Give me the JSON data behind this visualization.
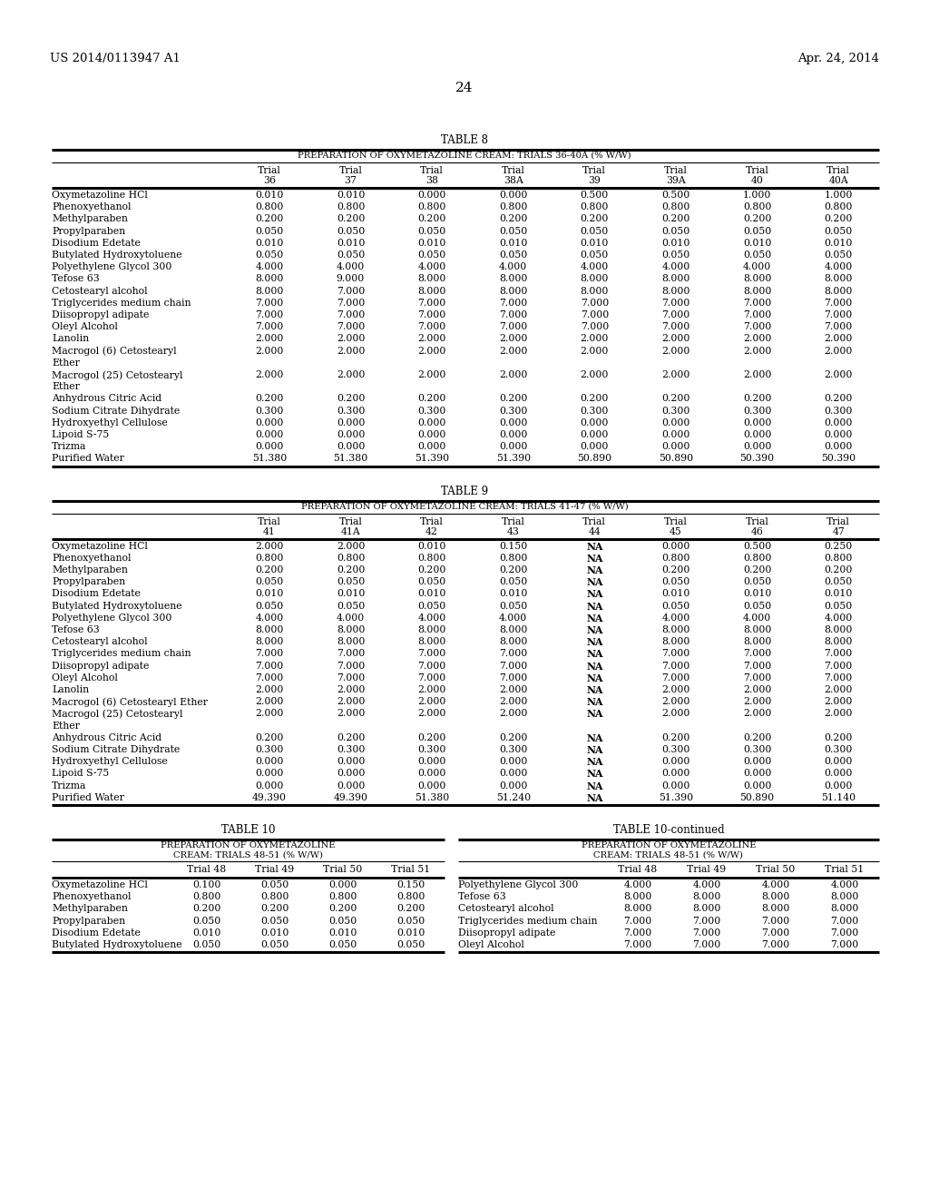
{
  "header_left": "US 2014/0113947 A1",
  "header_right": "Apr. 24, 2014",
  "page_num": "24",
  "table8": {
    "title": "TABLE 8",
    "subtitle": "PREPARATION OF OXYMETAZOLINE CREAM: TRIALS 36-40A (% W/W)",
    "col_headers": [
      [
        "Trial",
        "36"
      ],
      [
        "Trial",
        "37"
      ],
      [
        "Trial",
        "38"
      ],
      [
        "Trial",
        "38A"
      ],
      [
        "Trial",
        "39"
      ],
      [
        "Trial",
        "39A"
      ],
      [
        "Trial",
        "40"
      ],
      [
        "Trial",
        "40A"
      ]
    ],
    "rows": [
      [
        "Oxymetazoline HCl",
        "0.010",
        "0.010",
        "0.000",
        "0.000",
        "0.500",
        "0.500",
        "1.000",
        "1.000"
      ],
      [
        "Phenoxyethanol",
        "0.800",
        "0.800",
        "0.800",
        "0.800",
        "0.800",
        "0.800",
        "0.800",
        "0.800"
      ],
      [
        "Methylparaben",
        "0.200",
        "0.200",
        "0.200",
        "0.200",
        "0.200",
        "0.200",
        "0.200",
        "0.200"
      ],
      [
        "Propylparaben",
        "0.050",
        "0.050",
        "0.050",
        "0.050",
        "0.050",
        "0.050",
        "0.050",
        "0.050"
      ],
      [
        "Disodium Edetate",
        "0.010",
        "0.010",
        "0.010",
        "0.010",
        "0.010",
        "0.010",
        "0.010",
        "0.010"
      ],
      [
        "Butylated Hydroxytoluene",
        "0.050",
        "0.050",
        "0.050",
        "0.050",
        "0.050",
        "0.050",
        "0.050",
        "0.050"
      ],
      [
        "Polyethylene Glycol 300",
        "4.000",
        "4.000",
        "4.000",
        "4.000",
        "4.000",
        "4.000",
        "4.000",
        "4.000"
      ],
      [
        "Tefose 63",
        "8.000",
        "9.000",
        "8.000",
        "8.000",
        "8.000",
        "8.000",
        "8.000",
        "8.000"
      ],
      [
        "Cetostearyl alcohol",
        "8.000",
        "7.000",
        "8.000",
        "8.000",
        "8.000",
        "8.000",
        "8.000",
        "8.000"
      ],
      [
        "Triglycerides medium chain",
        "7.000",
        "7.000",
        "7.000",
        "7.000",
        "7.000",
        "7.000",
        "7.000",
        "7.000"
      ],
      [
        "Diisopropyl adipate",
        "7.000",
        "7.000",
        "7.000",
        "7.000",
        "7.000",
        "7.000",
        "7.000",
        "7.000"
      ],
      [
        "Oleyl Alcohol",
        "7.000",
        "7.000",
        "7.000",
        "7.000",
        "7.000",
        "7.000",
        "7.000",
        "7.000"
      ],
      [
        "Lanolin",
        "2.000",
        "2.000",
        "2.000",
        "2.000",
        "2.000",
        "2.000",
        "2.000",
        "2.000"
      ],
      [
        "Macrogol (6) Cetostearyl\nEther",
        "2.000",
        "2.000",
        "2.000",
        "2.000",
        "2.000",
        "2.000",
        "2.000",
        "2.000"
      ],
      [
        "Macrogol (25) Cetostearyl\nEther",
        "2.000",
        "2.000",
        "2.000",
        "2.000",
        "2.000",
        "2.000",
        "2.000",
        "2.000"
      ],
      [
        "Anhydrous Citric Acid",
        "0.200",
        "0.200",
        "0.200",
        "0.200",
        "0.200",
        "0.200",
        "0.200",
        "0.200"
      ],
      [
        "Sodium Citrate Dihydrate",
        "0.300",
        "0.300",
        "0.300",
        "0.300",
        "0.300",
        "0.300",
        "0.300",
        "0.300"
      ],
      [
        "Hydroxyethyl Cellulose",
        "0.000",
        "0.000",
        "0.000",
        "0.000",
        "0.000",
        "0.000",
        "0.000",
        "0.000"
      ],
      [
        "Lipoid S-75",
        "0.000",
        "0.000",
        "0.000",
        "0.000",
        "0.000",
        "0.000",
        "0.000",
        "0.000"
      ],
      [
        "Trizma",
        "0.000",
        "0.000",
        "0.000",
        "0.000",
        "0.000",
        "0.000",
        "0.000",
        "0.000"
      ],
      [
        "Purified Water",
        "51.380",
        "51.380",
        "51.390",
        "51.390",
        "50.890",
        "50.890",
        "50.390",
        "50.390"
      ]
    ]
  },
  "table9": {
    "title": "TABLE 9",
    "subtitle": "PREPARATION OF OXYMETAZOLINE CREAM: TRIALS 41-47 (% W/W)",
    "col_headers": [
      [
        "Trial",
        "41"
      ],
      [
        "Trial",
        "41A"
      ],
      [
        "Trial",
        "42"
      ],
      [
        "Trial",
        "43"
      ],
      [
        "Trial",
        "44"
      ],
      [
        "Trial",
        "45"
      ],
      [
        "Trial",
        "46"
      ],
      [
        "Trial",
        "47"
      ]
    ],
    "rows": [
      [
        "Oxymetazoline HCl",
        "2.000",
        "2.000",
        "0.010",
        "0.150",
        "NA",
        "0.000",
        "0.500",
        "0.250"
      ],
      [
        "Phenoxyethanol",
        "0.800",
        "0.800",
        "0.800",
        "0.800",
        "NA",
        "0.800",
        "0.800",
        "0.800"
      ],
      [
        "Methylparaben",
        "0.200",
        "0.200",
        "0.200",
        "0.200",
        "NA",
        "0.200",
        "0.200",
        "0.200"
      ],
      [
        "Propylparaben",
        "0.050",
        "0.050",
        "0.050",
        "0.050",
        "NA",
        "0.050",
        "0.050",
        "0.050"
      ],
      [
        "Disodium Edetate",
        "0.010",
        "0.010",
        "0.010",
        "0.010",
        "NA",
        "0.010",
        "0.010",
        "0.010"
      ],
      [
        "Butylated Hydroxytoluene",
        "0.050",
        "0.050",
        "0.050",
        "0.050",
        "NA",
        "0.050",
        "0.050",
        "0.050"
      ],
      [
        "Polyethylene Glycol 300",
        "4.000",
        "4.000",
        "4.000",
        "4.000",
        "NA",
        "4.000",
        "4.000",
        "4.000"
      ],
      [
        "Tefose 63",
        "8.000",
        "8.000",
        "8.000",
        "8.000",
        "NA",
        "8.000",
        "8.000",
        "8.000"
      ],
      [
        "Cetostearyl alcohol",
        "8.000",
        "8.000",
        "8.000",
        "8.000",
        "NA",
        "8.000",
        "8.000",
        "8.000"
      ],
      [
        "Triglycerides medium chain",
        "7.000",
        "7.000",
        "7.000",
        "7.000",
        "NA",
        "7.000",
        "7.000",
        "7.000"
      ],
      [
        "Diisopropyl adipate",
        "7.000",
        "7.000",
        "7.000",
        "7.000",
        "NA",
        "7.000",
        "7.000",
        "7.000"
      ],
      [
        "Oleyl Alcohol",
        "7.000",
        "7.000",
        "7.000",
        "7.000",
        "NA",
        "7.000",
        "7.000",
        "7.000"
      ],
      [
        "Lanolin",
        "2.000",
        "2.000",
        "2.000",
        "2.000",
        "NA",
        "2.000",
        "2.000",
        "2.000"
      ],
      [
        "Macrogol (6) Cetostearyl Ether",
        "2.000",
        "2.000",
        "2.000",
        "2.000",
        "NA",
        "2.000",
        "2.000",
        "2.000"
      ],
      [
        "Macrogol (25) Cetostearyl\nEther",
        "2.000",
        "2.000",
        "2.000",
        "2.000",
        "NA",
        "2.000",
        "2.000",
        "2.000"
      ],
      [
        "Anhydrous Citric Acid",
        "0.200",
        "0.200",
        "0.200",
        "0.200",
        "NA",
        "0.200",
        "0.200",
        "0.200"
      ],
      [
        "Sodium Citrate Dihydrate",
        "0.300",
        "0.300",
        "0.300",
        "0.300",
        "NA",
        "0.300",
        "0.300",
        "0.300"
      ],
      [
        "Hydroxyethyl Cellulose",
        "0.000",
        "0.000",
        "0.000",
        "0.000",
        "NA",
        "0.000",
        "0.000",
        "0.000"
      ],
      [
        "Lipoid S-75",
        "0.000",
        "0.000",
        "0.000",
        "0.000",
        "NA",
        "0.000",
        "0.000",
        "0.000"
      ],
      [
        "Trizma",
        "0.000",
        "0.000",
        "0.000",
        "0.000",
        "NA",
        "0.000",
        "0.000",
        "0.000"
      ],
      [
        "Purified Water",
        "49.390",
        "49.390",
        "51.380",
        "51.240",
        "NA",
        "51.390",
        "50.890",
        "51.140"
      ]
    ]
  },
  "table10_left": {
    "title": "TABLE 10",
    "subtitle_lines": [
      "PREPARATION OF OXYMETAZOLINE",
      "CREAM: TRIALS 48-51 (% W/W)"
    ],
    "col_headers": [
      "Trial 48",
      "Trial 49",
      "Trial 50",
      "Trial 51"
    ],
    "rows": [
      [
        "Oxymetazoline HCl",
        "0.100",
        "0.050",
        "0.000",
        "0.150"
      ],
      [
        "Phenoxyethanol",
        "0.800",
        "0.800",
        "0.800",
        "0.800"
      ],
      [
        "Methylparaben",
        "0.200",
        "0.200",
        "0.200",
        "0.200"
      ],
      [
        "Propylparaben",
        "0.050",
        "0.050",
        "0.050",
        "0.050"
      ],
      [
        "Disodium Edetate",
        "0.010",
        "0.010",
        "0.010",
        "0.010"
      ],
      [
        "Butylated Hydroxytoluene",
        "0.050",
        "0.050",
        "0.050",
        "0.050"
      ]
    ]
  },
  "table10_right": {
    "title": "TABLE 10-continued",
    "subtitle_lines": [
      "PREPARATION OF OXYMETAZOLINE",
      "CREAM: TRIALS 48-51 (% W/W)"
    ],
    "col_headers": [
      "Trial 48",
      "Trial 49",
      "Trial 50",
      "Trial 51"
    ],
    "rows": [
      [
        "Polyethylene Glycol 300",
        "4.000",
        "4.000",
        "4.000",
        "4.000"
      ],
      [
        "Tefose 63",
        "8.000",
        "8.000",
        "8.000",
        "8.000"
      ],
      [
        "Cetostearyl alcohol",
        "8.000",
        "8.000",
        "8.000",
        "8.000"
      ],
      [
        "Triglycerides medium chain",
        "7.000",
        "7.000",
        "7.000",
        "7.000"
      ],
      [
        "Diisopropyl adipate",
        "7.000",
        "7.000",
        "7.000",
        "7.000"
      ],
      [
        "Oleyl Alcohol",
        "7.000",
        "7.000",
        "7.000",
        "7.000"
      ]
    ]
  },
  "bg_color": "#ffffff",
  "text_color": "#000000"
}
